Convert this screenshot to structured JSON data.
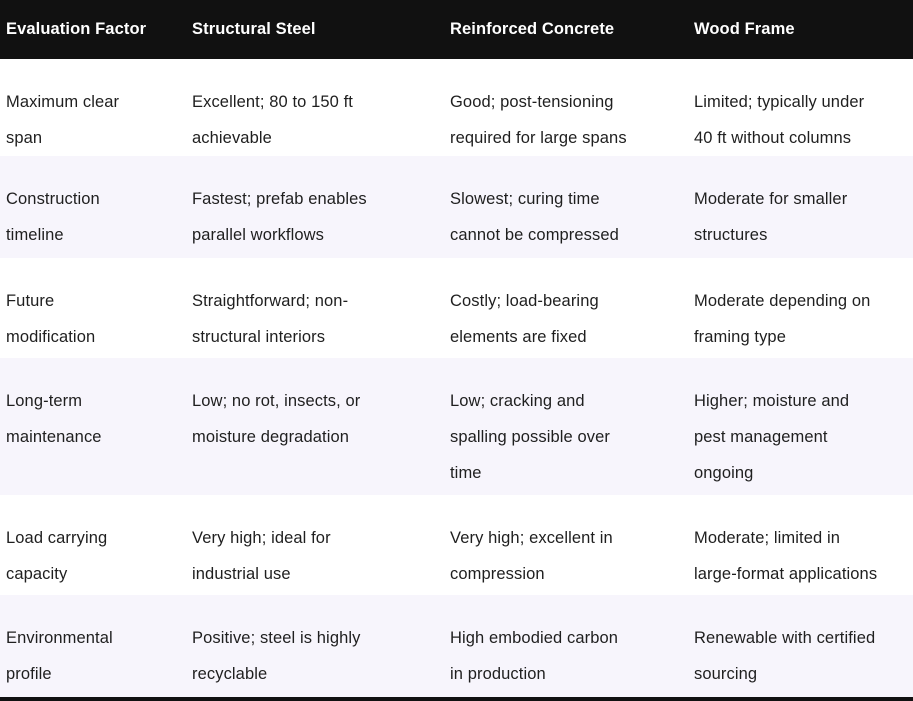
{
  "colors": {
    "header_bg": "#111111",
    "header_text": "#ffffff",
    "row_bg": "#ffffff",
    "row_alt_bg": "#f7f5fc",
    "body_text": "#1f1f1f",
    "bottom_bar": "#111111"
  },
  "table": {
    "columns": [
      "Evaluation Factor",
      "Structural Steel",
      "Reinforced Concrete",
      "Wood Frame"
    ],
    "rows": [
      {
        "cells": [
          [
            "Maximum clear",
            "span"
          ],
          [
            "Excellent; 80 to 150 ft",
            "achievable"
          ],
          [
            "Good; post-tensioning",
            "required for large spans"
          ],
          [
            "Limited; typically under",
            "40 ft without columns"
          ]
        ]
      },
      {
        "cells": [
          [
            "Construction",
            "timeline"
          ],
          [
            "Fastest; prefab enables",
            "parallel workflows"
          ],
          [
            "Slowest; curing time",
            "cannot be compressed"
          ],
          [
            "Moderate for smaller",
            "structures"
          ]
        ]
      },
      {
        "cells": [
          [
            "Future",
            "modification"
          ],
          [
            "Straightforward; non-",
            "structural interiors"
          ],
          [
            "Costly; load-bearing",
            "elements are fixed"
          ],
          [
            "Moderate depending on",
            "framing type"
          ]
        ]
      },
      {
        "cells": [
          [
            "Long-term",
            "maintenance"
          ],
          [
            "Low; no rot, insects, or",
            "moisture degradation"
          ],
          [
            "Low; cracking and",
            "spalling possible over",
            "time"
          ],
          [
            "Higher; moisture and",
            "pest management",
            "ongoing"
          ]
        ]
      },
      {
        "cells": [
          [
            "Load carrying",
            "capacity"
          ],
          [
            "Very high; ideal for",
            "industrial use"
          ],
          [
            "Very high; excellent in",
            "compression"
          ],
          [
            "Moderate; limited in",
            "large-format applications"
          ]
        ]
      },
      {
        "cells": [
          [
            "Environmental",
            "profile"
          ],
          [
            "Positive; steel is highly",
            "recyclable"
          ],
          [
            "High embodied carbon",
            "in production"
          ],
          [
            "Renewable with certified",
            "sourcing"
          ]
        ]
      }
    ]
  },
  "chart_data": {
    "type": "table",
    "title": "",
    "columns": [
      "Evaluation Factor",
      "Structural Steel",
      "Reinforced Concrete",
      "Wood Frame"
    ],
    "rows": [
      [
        "Maximum clear span",
        "Excellent; 80 to 150 ft achievable",
        "Good; post-tensioning required for large spans",
        "Limited; typically under 40 ft without columns"
      ],
      [
        "Construction timeline",
        "Fastest; prefab enables parallel workflows",
        "Slowest; curing time cannot be compressed",
        "Moderate for smaller structures"
      ],
      [
        "Future modification",
        "Straightforward; non-structural interiors",
        "Costly; load-bearing elements are fixed",
        "Moderate depending on framing type"
      ],
      [
        "Long-term maintenance",
        "Low; no rot, insects, or moisture degradation",
        "Low; cracking and spalling possible over time",
        "Higher; moisture and pest management ongoing"
      ],
      [
        "Load carrying capacity",
        "Very high; ideal for industrial use",
        "Very high; excellent in compression",
        "Moderate; limited in large-format applications"
      ],
      [
        "Environmental profile",
        "Positive; steel is highly recyclable",
        "High embodied carbon in production",
        "Renewable with certified sourcing"
      ]
    ]
  }
}
